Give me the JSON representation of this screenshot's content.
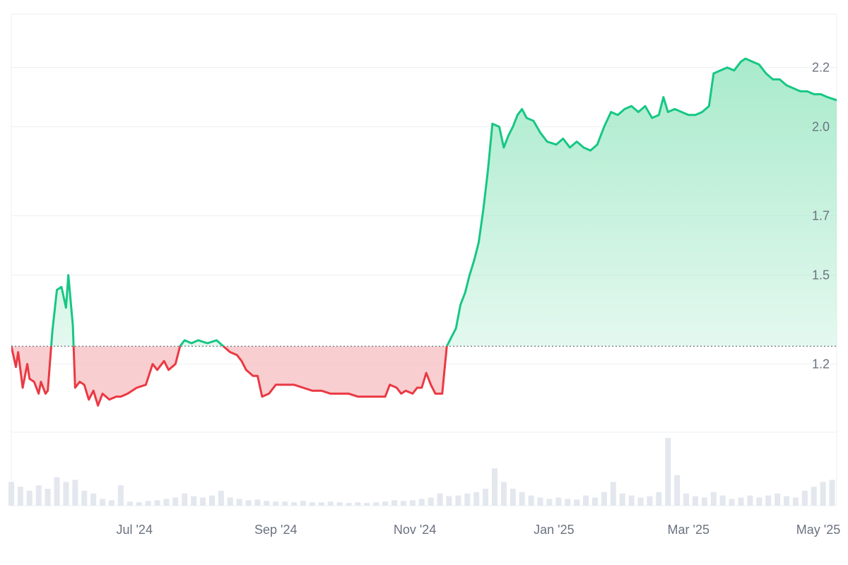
{
  "colors": {
    "up_line": "#16c784",
    "down_line": "#ea3943",
    "up_fill_top": "#9fe8c6",
    "down_fill": "#f8c5c8",
    "baseline": "#6b7280",
    "grid": "#eceff3",
    "volume": "#e3e7ee",
    "axis_text": "#6b7280"
  },
  "chart_data": {
    "type": "area",
    "baseline": 1.26,
    "ylim": [
      0.97,
      2.38
    ],
    "xlim": [
      "2024-05-08",
      "2025-05-05"
    ],
    "grid": true,
    "y_ticks": [
      {
        "value": 1.2,
        "label": "1.2"
      },
      {
        "value": 1.5,
        "label": "1.5"
      },
      {
        "value": 1.7,
        "label": "1.7"
      },
      {
        "value": 2.0,
        "label": "2.0"
      },
      {
        "value": 2.2,
        "label": "2.2"
      }
    ],
    "x_ticks": [
      {
        "date": "2024-07-01",
        "label": "Jul '24"
      },
      {
        "date": "2024-09-01",
        "label": "Sep '24"
      },
      {
        "date": "2024-11-01",
        "label": "Nov '24"
      },
      {
        "date": "2025-01-01",
        "label": "Jan '25"
      },
      {
        "date": "2025-03-01",
        "label": "Mar '25"
      },
      {
        "date": "2025-05-01",
        "label": "May '25"
      }
    ],
    "series": [
      {
        "points": [
          [
            "2024-05-08",
            1.26
          ],
          [
            "2024-05-10",
            1.19
          ],
          [
            "2024-05-11",
            1.24
          ],
          [
            "2024-05-13",
            1.12
          ],
          [
            "2024-05-15",
            1.2
          ],
          [
            "2024-05-16",
            1.15
          ],
          [
            "2024-05-18",
            1.14
          ],
          [
            "2024-05-20",
            1.1
          ],
          [
            "2024-05-21",
            1.14
          ],
          [
            "2024-05-23",
            1.1
          ],
          [
            "2024-05-24",
            1.11
          ],
          [
            "2024-05-26",
            1.31
          ],
          [
            "2024-05-28",
            1.45
          ],
          [
            "2024-05-30",
            1.46
          ],
          [
            "2024-06-01",
            1.39
          ],
          [
            "2024-06-02",
            1.5
          ],
          [
            "2024-06-04",
            1.33
          ],
          [
            "2024-06-05",
            1.12
          ],
          [
            "2024-06-07",
            1.14
          ],
          [
            "2024-06-09",
            1.13
          ],
          [
            "2024-06-11",
            1.08
          ],
          [
            "2024-06-13",
            1.11
          ],
          [
            "2024-06-15",
            1.06
          ],
          [
            "2024-06-17",
            1.1
          ],
          [
            "2024-06-20",
            1.08
          ],
          [
            "2024-06-23",
            1.09
          ],
          [
            "2024-06-25",
            1.09
          ],
          [
            "2024-06-28",
            1.1
          ],
          [
            "2024-07-02",
            1.12
          ],
          [
            "2024-07-06",
            1.13
          ],
          [
            "2024-07-09",
            1.2
          ],
          [
            "2024-07-11",
            1.18
          ],
          [
            "2024-07-14",
            1.21
          ],
          [
            "2024-07-16",
            1.18
          ],
          [
            "2024-07-19",
            1.2
          ],
          [
            "2024-07-21",
            1.26
          ],
          [
            "2024-07-23",
            1.28
          ],
          [
            "2024-07-26",
            1.27
          ],
          [
            "2024-07-29",
            1.28
          ],
          [
            "2024-08-02",
            1.27
          ],
          [
            "2024-08-06",
            1.28
          ],
          [
            "2024-08-09",
            1.26
          ],
          [
            "2024-08-12",
            1.24
          ],
          [
            "2024-08-15",
            1.23
          ],
          [
            "2024-08-17",
            1.21
          ],
          [
            "2024-08-19",
            1.18
          ],
          [
            "2024-08-22",
            1.16
          ],
          [
            "2024-08-24",
            1.16
          ],
          [
            "2024-08-26",
            1.09
          ],
          [
            "2024-08-29",
            1.1
          ],
          [
            "2024-09-01",
            1.13
          ],
          [
            "2024-09-05",
            1.13
          ],
          [
            "2024-09-09",
            1.13
          ],
          [
            "2024-09-13",
            1.12
          ],
          [
            "2024-09-17",
            1.11
          ],
          [
            "2024-09-21",
            1.11
          ],
          [
            "2024-09-25",
            1.1
          ],
          [
            "2024-09-29",
            1.1
          ],
          [
            "2024-10-03",
            1.1
          ],
          [
            "2024-10-07",
            1.09
          ],
          [
            "2024-10-11",
            1.09
          ],
          [
            "2024-10-15",
            1.09
          ],
          [
            "2024-10-19",
            1.09
          ],
          [
            "2024-10-21",
            1.13
          ],
          [
            "2024-10-24",
            1.12
          ],
          [
            "2024-10-26",
            1.1
          ],
          [
            "2024-10-28",
            1.11
          ],
          [
            "2024-10-31",
            1.1
          ],
          [
            "2024-11-02",
            1.12
          ],
          [
            "2024-11-04",
            1.12
          ],
          [
            "2024-11-06",
            1.17
          ],
          [
            "2024-11-08",
            1.13
          ],
          [
            "2024-11-10",
            1.1
          ],
          [
            "2024-11-13",
            1.1
          ],
          [
            "2024-11-14",
            1.18
          ],
          [
            "2024-11-15",
            1.26
          ],
          [
            "2024-11-17",
            1.29
          ],
          [
            "2024-11-19",
            1.32
          ],
          [
            "2024-11-21",
            1.4
          ],
          [
            "2024-11-23",
            1.44
          ],
          [
            "2024-11-25",
            1.5
          ],
          [
            "2024-11-27",
            1.55
          ],
          [
            "2024-11-29",
            1.61
          ],
          [
            "2024-12-01",
            1.72
          ],
          [
            "2024-12-03",
            1.85
          ],
          [
            "2024-12-05",
            2.01
          ],
          [
            "2024-12-08",
            2.0
          ],
          [
            "2024-12-10",
            1.93
          ],
          [
            "2024-12-12",
            1.97
          ],
          [
            "2024-12-14",
            2.0
          ],
          [
            "2024-12-16",
            2.04
          ],
          [
            "2024-12-18",
            2.06
          ],
          [
            "2024-12-20",
            2.03
          ],
          [
            "2024-12-23",
            2.02
          ],
          [
            "2024-12-26",
            1.98
          ],
          [
            "2024-12-29",
            1.95
          ],
          [
            "2025-01-02",
            1.94
          ],
          [
            "2025-01-05",
            1.96
          ],
          [
            "2025-01-08",
            1.93
          ],
          [
            "2025-01-11",
            1.95
          ],
          [
            "2025-01-14",
            1.93
          ],
          [
            "2025-01-17",
            1.92
          ],
          [
            "2025-01-20",
            1.94
          ],
          [
            "2025-01-23",
            2.0
          ],
          [
            "2025-01-26",
            2.05
          ],
          [
            "2025-01-29",
            2.04
          ],
          [
            "2025-02-01",
            2.06
          ],
          [
            "2025-02-04",
            2.07
          ],
          [
            "2025-02-07",
            2.05
          ],
          [
            "2025-02-10",
            2.07
          ],
          [
            "2025-02-13",
            2.03
          ],
          [
            "2025-02-16",
            2.04
          ],
          [
            "2025-02-18",
            2.1
          ],
          [
            "2025-02-20",
            2.05
          ],
          [
            "2025-02-23",
            2.06
          ],
          [
            "2025-02-26",
            2.05
          ],
          [
            "2025-03-01",
            2.04
          ],
          [
            "2025-03-04",
            2.04
          ],
          [
            "2025-03-07",
            2.05
          ],
          [
            "2025-03-10",
            2.07
          ],
          [
            "2025-03-12",
            2.18
          ],
          [
            "2025-03-15",
            2.19
          ],
          [
            "2025-03-18",
            2.2
          ],
          [
            "2025-03-21",
            2.19
          ],
          [
            "2025-03-24",
            2.22
          ],
          [
            "2025-03-26",
            2.23
          ],
          [
            "2025-03-29",
            2.22
          ],
          [
            "2025-04-01",
            2.21
          ],
          [
            "2025-04-04",
            2.18
          ],
          [
            "2025-04-07",
            2.16
          ],
          [
            "2025-04-10",
            2.16
          ],
          [
            "2025-04-13",
            2.14
          ],
          [
            "2025-04-16",
            2.13
          ],
          [
            "2025-04-19",
            2.12
          ],
          [
            "2025-04-22",
            2.12
          ],
          [
            "2025-04-25",
            2.11
          ],
          [
            "2025-04-28",
            2.11
          ],
          [
            "2025-05-01",
            2.1
          ],
          [
            "2025-05-05",
            2.09
          ]
        ]
      }
    ],
    "volume": [
      [
        "2024-05-08",
        0.35
      ],
      [
        "2024-05-12",
        0.28
      ],
      [
        "2024-05-16",
        0.22
      ],
      [
        "2024-05-20",
        0.3
      ],
      [
        "2024-05-24",
        0.25
      ],
      [
        "2024-05-28",
        0.42
      ],
      [
        "2024-06-01",
        0.35
      ],
      [
        "2024-06-05",
        0.38
      ],
      [
        "2024-06-09",
        0.22
      ],
      [
        "2024-06-13",
        0.18
      ],
      [
        "2024-06-17",
        0.1
      ],
      [
        "2024-06-21",
        0.08
      ],
      [
        "2024-06-25",
        0.3
      ],
      [
        "2024-06-29",
        0.06
      ],
      [
        "2024-07-03",
        0.05
      ],
      [
        "2024-07-07",
        0.07
      ],
      [
        "2024-07-11",
        0.08
      ],
      [
        "2024-07-15",
        0.1
      ],
      [
        "2024-07-19",
        0.12
      ],
      [
        "2024-07-23",
        0.18
      ],
      [
        "2024-07-27",
        0.14
      ],
      [
        "2024-07-31",
        0.12
      ],
      [
        "2024-08-04",
        0.15
      ],
      [
        "2024-08-08",
        0.22
      ],
      [
        "2024-08-12",
        0.12
      ],
      [
        "2024-08-16",
        0.1
      ],
      [
        "2024-08-20",
        0.08
      ],
      [
        "2024-08-24",
        0.09
      ],
      [
        "2024-08-28",
        0.07
      ],
      [
        "2024-09-01",
        0.06
      ],
      [
        "2024-09-05",
        0.06
      ],
      [
        "2024-09-09",
        0.05
      ],
      [
        "2024-09-13",
        0.07
      ],
      [
        "2024-09-17",
        0.05
      ],
      [
        "2024-09-21",
        0.05
      ],
      [
        "2024-09-25",
        0.06
      ],
      [
        "2024-09-29",
        0.05
      ],
      [
        "2024-10-03",
        0.04
      ],
      [
        "2024-10-07",
        0.05
      ],
      [
        "2024-10-11",
        0.04
      ],
      [
        "2024-10-15",
        0.05
      ],
      [
        "2024-10-19",
        0.06
      ],
      [
        "2024-10-23",
        0.08
      ],
      [
        "2024-10-27",
        0.07
      ],
      [
        "2024-10-31",
        0.08
      ],
      [
        "2024-11-04",
        0.1
      ],
      [
        "2024-11-08",
        0.12
      ],
      [
        "2024-11-12",
        0.18
      ],
      [
        "2024-11-16",
        0.14
      ],
      [
        "2024-11-20",
        0.15
      ],
      [
        "2024-11-24",
        0.18
      ],
      [
        "2024-11-28",
        0.2
      ],
      [
        "2024-12-02",
        0.25
      ],
      [
        "2024-12-06",
        0.55
      ],
      [
        "2024-12-10",
        0.35
      ],
      [
        "2024-12-14",
        0.25
      ],
      [
        "2024-12-18",
        0.2
      ],
      [
        "2024-12-22",
        0.15
      ],
      [
        "2024-12-26",
        0.12
      ],
      [
        "2024-12-30",
        0.1
      ],
      [
        "2025-01-03",
        0.12
      ],
      [
        "2025-01-07",
        0.1
      ],
      [
        "2025-01-11",
        0.09
      ],
      [
        "2025-01-15",
        0.15
      ],
      [
        "2025-01-19",
        0.12
      ],
      [
        "2025-01-23",
        0.2
      ],
      [
        "2025-01-27",
        0.35
      ],
      [
        "2025-01-31",
        0.18
      ],
      [
        "2025-02-04",
        0.15
      ],
      [
        "2025-02-08",
        0.12
      ],
      [
        "2025-02-12",
        0.14
      ],
      [
        "2025-02-16",
        0.2
      ],
      [
        "2025-02-20",
        1.0
      ],
      [
        "2025-02-24",
        0.45
      ],
      [
        "2025-02-28",
        0.18
      ],
      [
        "2025-03-04",
        0.14
      ],
      [
        "2025-03-08",
        0.12
      ],
      [
        "2025-03-12",
        0.2
      ],
      [
        "2025-03-16",
        0.15
      ],
      [
        "2025-03-20",
        0.1
      ],
      [
        "2025-03-24",
        0.12
      ],
      [
        "2025-03-28",
        0.15
      ],
      [
        "2025-04-01",
        0.12
      ],
      [
        "2025-04-05",
        0.15
      ],
      [
        "2025-04-09",
        0.18
      ],
      [
        "2025-04-13",
        0.14
      ],
      [
        "2025-04-17",
        0.12
      ],
      [
        "2025-04-21",
        0.22
      ],
      [
        "2025-04-25",
        0.28
      ],
      [
        "2025-04-29",
        0.35
      ],
      [
        "2025-05-03",
        0.38
      ]
    ]
  }
}
